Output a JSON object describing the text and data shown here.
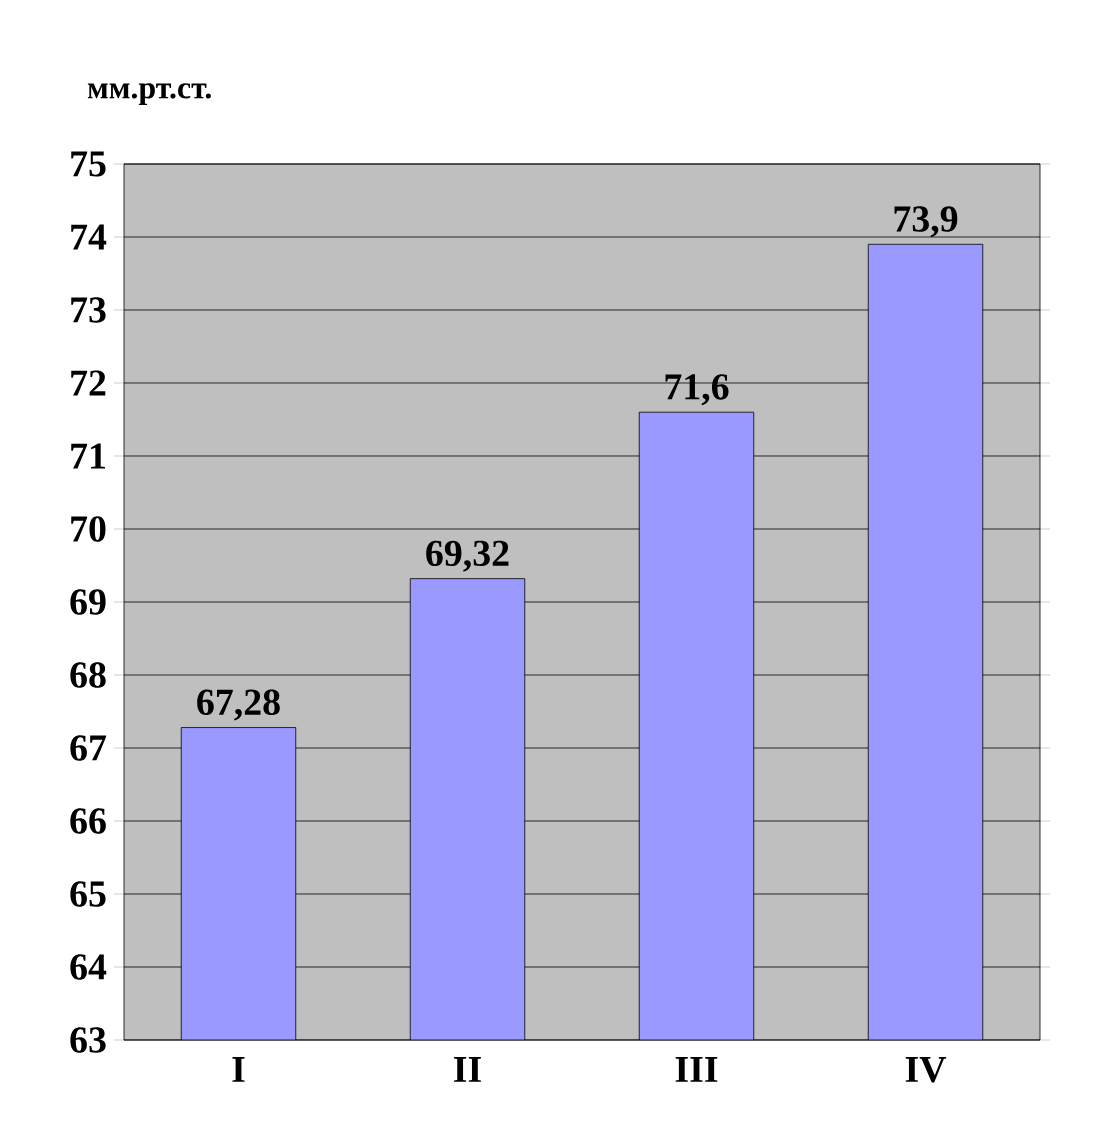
{
  "chart_data": {
    "type": "bar",
    "ylabel": "мм.рт.ст.",
    "categories": [
      "I",
      "II",
      "III",
      "IV"
    ],
    "values": [
      67.28,
      69.32,
      71.6,
      73.9
    ],
    "value_labels": [
      "67,28",
      "69,32",
      "71,6",
      "73,9"
    ],
    "color": "#9999ff",
    "ylim": [
      63,
      75
    ],
    "yticks": [
      63,
      64,
      65,
      66,
      67,
      68,
      69,
      70,
      71,
      72,
      73,
      74,
      75
    ],
    "grid": "y"
  }
}
